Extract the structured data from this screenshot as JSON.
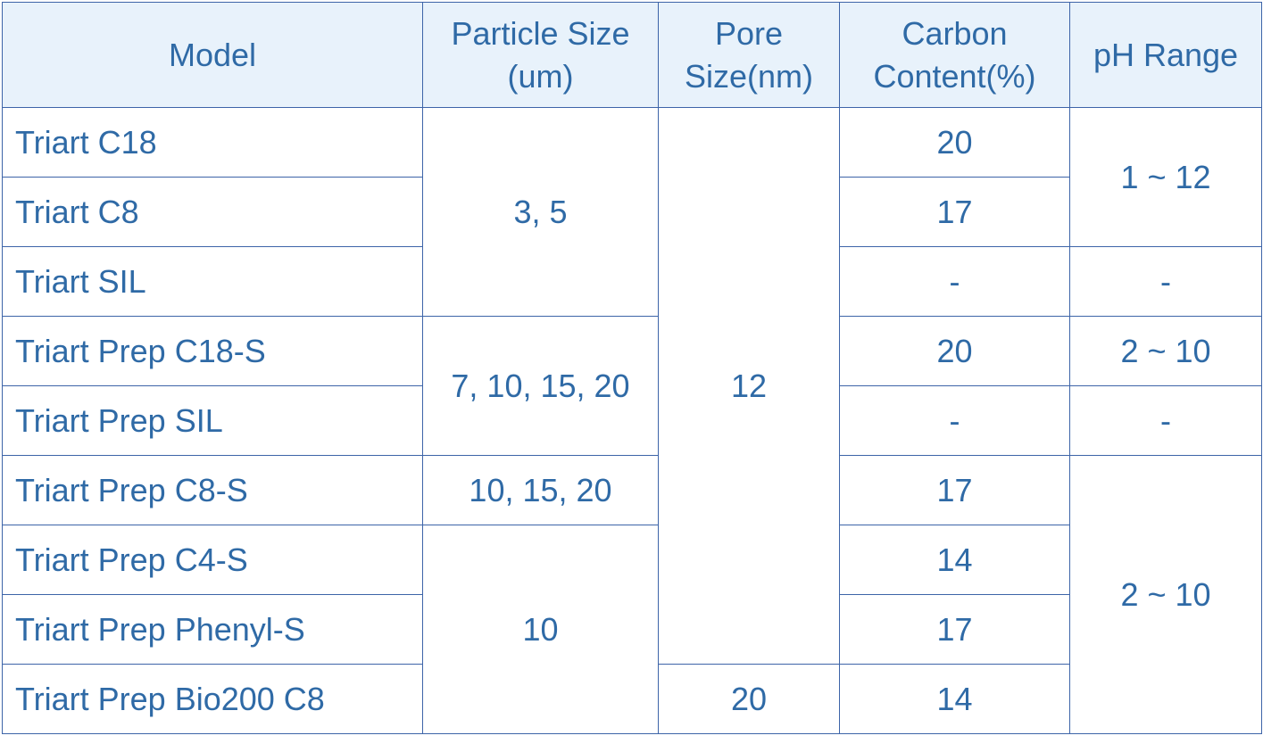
{
  "table": {
    "header": [
      "Model",
      "Particle Size (um)",
      "Pore Size(nm)",
      "Carbon Content(%)",
      "pH Range"
    ],
    "rows": [
      [
        "Triart C18",
        "3, 5",
        "12",
        "20",
        "1 ~ 12"
      ],
      [
        "Triart C8",
        "17"
      ],
      [
        "Triart SIL",
        "-",
        "-"
      ],
      [
        "Triart Prep C18-S",
        "7, 10, 15, 20",
        "20",
        "2 ~ 10"
      ],
      [
        "Triart Prep SIL",
        "-",
        "-"
      ],
      [
        "Triart Prep C8-S",
        "10, 15, 20",
        "17",
        "2 ~ 10"
      ],
      [
        "Triart Prep C4-S",
        "10",
        "14"
      ],
      [
        "Triart Prep Phenyl-S",
        "17"
      ],
      [
        "Triart Prep Bio200 C8",
        "20",
        "14"
      ]
    ]
  }
}
